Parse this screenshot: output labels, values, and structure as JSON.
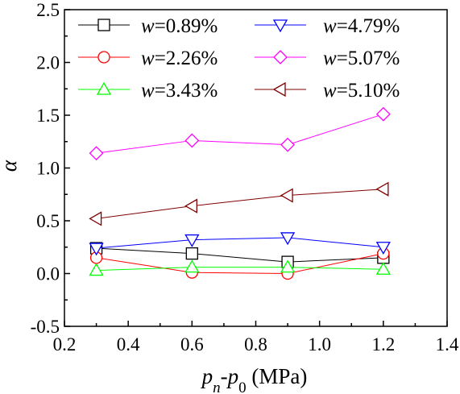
{
  "chart_data": {
    "type": "line",
    "xlabel": {
      "var": "p",
      "sub1": "n",
      "sep": "-",
      "var2": "p",
      "sub2": "0",
      "unit": " (MPa)"
    },
    "ylabel": "α",
    "xlim": [
      0.2,
      1.4
    ],
    "ylim": [
      -0.5,
      2.5
    ],
    "x_ticks": [
      "0.2",
      "0.4",
      "0.6",
      "0.8",
      "1.0",
      "1.2",
      "1.4"
    ],
    "y_ticks": [
      "-0.5",
      "0.0",
      "0.5",
      "1.0",
      "1.5",
      "2.0",
      "2.5"
    ],
    "grid": false,
    "legend_position": "top",
    "x": [
      0.3,
      0.6,
      0.9,
      1.2
    ],
    "series": [
      {
        "name": "w=0.89%",
        "name_var": "w",
        "name_rest": "=0.89%",
        "color": "#000000",
        "marker": "square",
        "values": [
          0.24,
          0.19,
          0.11,
          0.15
        ]
      },
      {
        "name": "w=2.26%",
        "name_var": "w",
        "name_rest": "=2.26%",
        "color": "#ff0000",
        "marker": "circle",
        "values": [
          0.15,
          0.01,
          0.0,
          0.19
        ]
      },
      {
        "name": "w=3.43%",
        "name_var": "w",
        "name_rest": "=3.43%",
        "color": "#00ff00",
        "marker": "triangle-up",
        "values": [
          0.03,
          0.06,
          0.06,
          0.04
        ]
      },
      {
        "name": "w=4.79%",
        "name_var": "w",
        "name_rest": "=4.79%",
        "color": "#0000ff",
        "marker": "triangle-down",
        "values": [
          0.24,
          0.32,
          0.34,
          0.25
        ]
      },
      {
        "name": "w=5.07%",
        "name_var": "w",
        "name_rest": "=5.07%",
        "color": "#ff00ff",
        "marker": "diamond",
        "values": [
          1.14,
          1.26,
          1.22,
          1.51
        ]
      },
      {
        "name": "w=5.10%",
        "name_var": "w",
        "name_rest": "=5.10%",
        "color": "#800000",
        "marker": "triangle-left",
        "values": [
          0.52,
          0.64,
          0.74,
          0.8
        ]
      }
    ]
  }
}
